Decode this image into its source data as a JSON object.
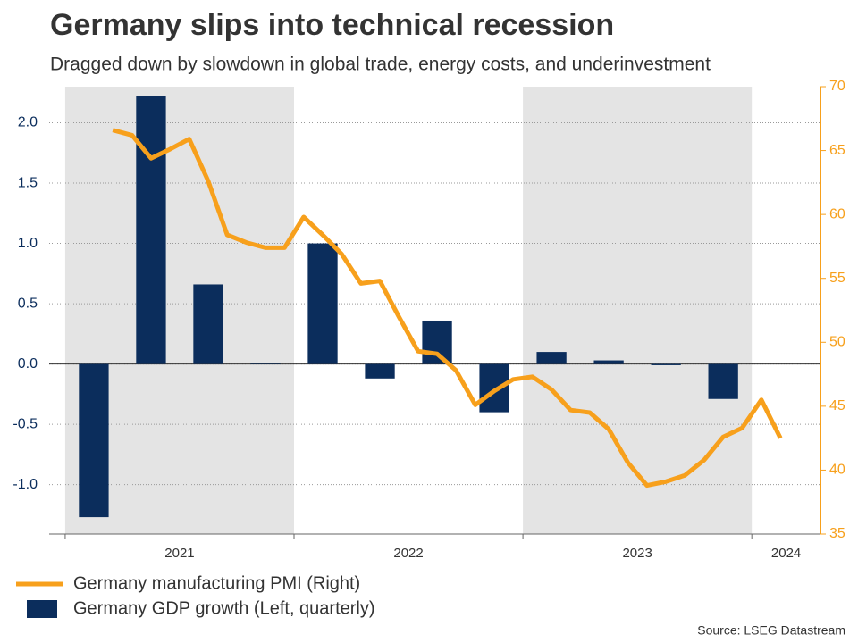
{
  "chart_data": {
    "type": "bar-line",
    "title": "Germany slips into technical recession",
    "subtitle": "Dragged down by slowdown in global trade, energy costs, and underinvestment",
    "source": "Source: LSEG Datastream",
    "xlim": [
      2020.93,
      2024.3
    ],
    "xticks": [
      2021,
      2022,
      2023,
      2024
    ],
    "ylim": [
      -1.41,
      2.3
    ],
    "yticks": [
      {
        "value": -1.0,
        "label": "-1.0"
      },
      -0.5,
      {
        "value": 0.0,
        "label": "0.0"
      },
      0.5,
      {
        "value": 1.0,
        "label": "1.0"
      },
      1.5,
      {
        "value": 2.0,
        "label": "2.0"
      }
    ],
    "y2lim": [
      35,
      70
    ],
    "y2ticks": [
      35,
      40,
      45,
      50,
      55,
      60,
      65,
      70
    ],
    "grid": true,
    "series": [
      {
        "name": "Germany manufacturing PMI (Right)",
        "type": "line",
        "axis": "y2",
        "color": "#f7a01c",
        "x": [
          2021.208,
          2021.292,
          2021.375,
          2021.458,
          2021.542,
          2021.625,
          2021.708,
          2021.792,
          2021.875,
          2021.958,
          2022.042,
          2022.125,
          2022.208,
          2022.292,
          2022.375,
          2022.458,
          2022.542,
          2022.625,
          2022.708,
          2022.792,
          2022.875,
          2022.958,
          2023.042,
          2023.125,
          2023.208,
          2023.292,
          2023.375,
          2023.458,
          2023.542,
          2023.625,
          2023.708,
          2023.792,
          2023.875,
          2023.958,
          2024.042,
          2024.125
        ],
        "values": [
          66.6,
          66.2,
          64.4,
          65.1,
          65.9,
          62.6,
          58.4,
          57.8,
          57.4,
          57.4,
          59.8,
          58.4,
          56.9,
          54.6,
          54.8,
          52.0,
          49.3,
          49.1,
          47.8,
          45.1,
          46.2,
          47.1,
          47.3,
          46.3,
          44.7,
          44.5,
          43.2,
          40.6,
          38.8,
          39.1,
          39.6,
          40.8,
          42.6,
          43.3,
          45.5,
          42.5
        ]
      },
      {
        "name": "Germany GDP growth (Left, quarterly)",
        "type": "bar",
        "axis": "y",
        "color": "#0b2d5c",
        "x": [
          2021.125,
          2021.375,
          2021.625,
          2021.875,
          2022.125,
          2022.375,
          2022.625,
          2022.875,
          2023.125,
          2023.375,
          2023.625,
          2023.875
        ],
        "values": [
          -1.27,
          2.22,
          0.66,
          0.01,
          1.0,
          -0.12,
          0.36,
          -0.4,
          0.1,
          0.03,
          -0.01,
          -0.29
        ]
      }
    ]
  }
}
